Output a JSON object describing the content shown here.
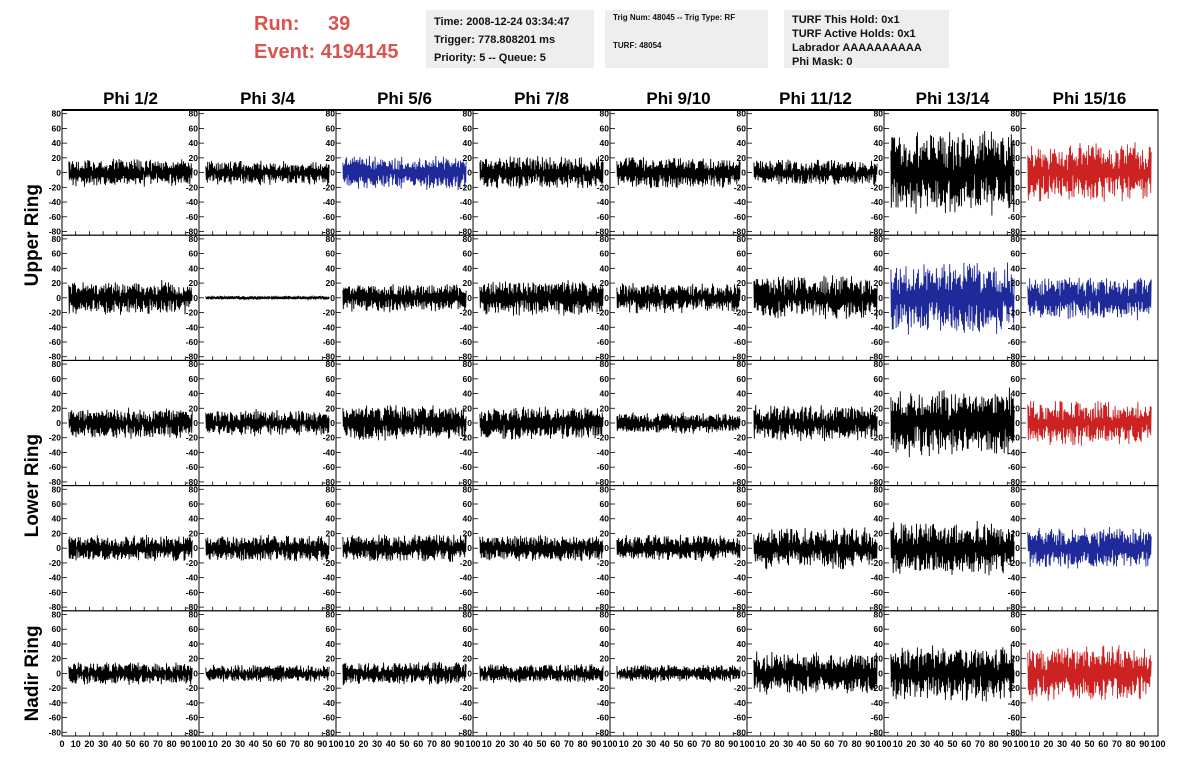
{
  "header": {
    "run_label": "Run:",
    "run_value": "39",
    "event_label": "Event:",
    "event_value": "4194145",
    "time_box": [
      "Time: 2008-12-24 03:34:47",
      "Trigger: 778.808201 ms",
      "Priority: 5 -- Queue: 5"
    ],
    "trig_box": [
      "Trig Num: 48045 -- Trig Type: RF",
      "",
      "TURF: 48054"
    ],
    "turf_box": [
      "TURF This Hold: 0x1",
      "TURF Active Holds: 0x1",
      "Labrador AAAAAAAAAA",
      "Phi Mask: 0"
    ]
  },
  "colors": {
    "black": "#000000",
    "blue": "#1f2a9a",
    "red": "#cc2222",
    "run_text": "#d9534f",
    "info_bg": "#eeeeee"
  },
  "chart_data": {
    "type": "line",
    "title": "",
    "columns": [
      "Phi 1/2",
      "Phi 3/4",
      "Phi 5/6",
      "Phi 7/8",
      "Phi 9/10",
      "Phi 11/12",
      "Phi 13/14",
      "Phi 15/16"
    ],
    "row_groups": [
      "Upper Ring",
      "Lower Ring",
      "Nadir Ring"
    ],
    "row_group_spans": [
      [
        0,
        1
      ],
      [
        2,
        3
      ],
      [
        4,
        4
      ]
    ],
    "xlim": [
      0,
      100
    ],
    "ylim": [
      -85,
      85
    ],
    "y_ticks": [
      -80,
      -60,
      -40,
      -20,
      0,
      20,
      40,
      60,
      80
    ],
    "y_tick_labels": [
      "-80",
      "-60",
      "-40",
      "-20",
      "0",
      "20",
      "40",
      "60",
      "80"
    ],
    "x_tick_labels": [
      [
        "0",
        "10",
        "20",
        "30",
        "40",
        "50",
        "60",
        "70",
        "80",
        "90",
        "100"
      ],
      [
        "10",
        "20",
        "30",
        "40",
        "50",
        "60",
        "70",
        "80",
        "90",
        "100"
      ]
    ],
    "panel_amplitude": [
      [
        15,
        13,
        18,
        17,
        17,
        14,
        45,
        32
      ],
      [
        18,
        2,
        15,
        19,
        16,
        24,
        38,
        23
      ],
      [
        16,
        14,
        19,
        17,
        11,
        19,
        36,
        24
      ],
      [
        14,
        14,
        15,
        14,
        14,
        22,
        28,
        22
      ],
      [
        12,
        9,
        12,
        10,
        9,
        23,
        30,
        30
      ]
    ],
    "panel_color": [
      [
        "black",
        "black",
        "blue",
        "black",
        "black",
        "black",
        "black",
        "red"
      ],
      [
        "black",
        "black",
        "black",
        "black",
        "black",
        "black",
        "blue",
        "blue"
      ],
      [
        "black",
        "black",
        "black",
        "black",
        "black",
        "black",
        "black",
        "red"
      ],
      [
        "black",
        "black",
        "black",
        "black",
        "black",
        "black",
        "black",
        "blue"
      ],
      [
        "black",
        "black",
        "black",
        "black",
        "black",
        "black",
        "black",
        "red"
      ]
    ]
  }
}
